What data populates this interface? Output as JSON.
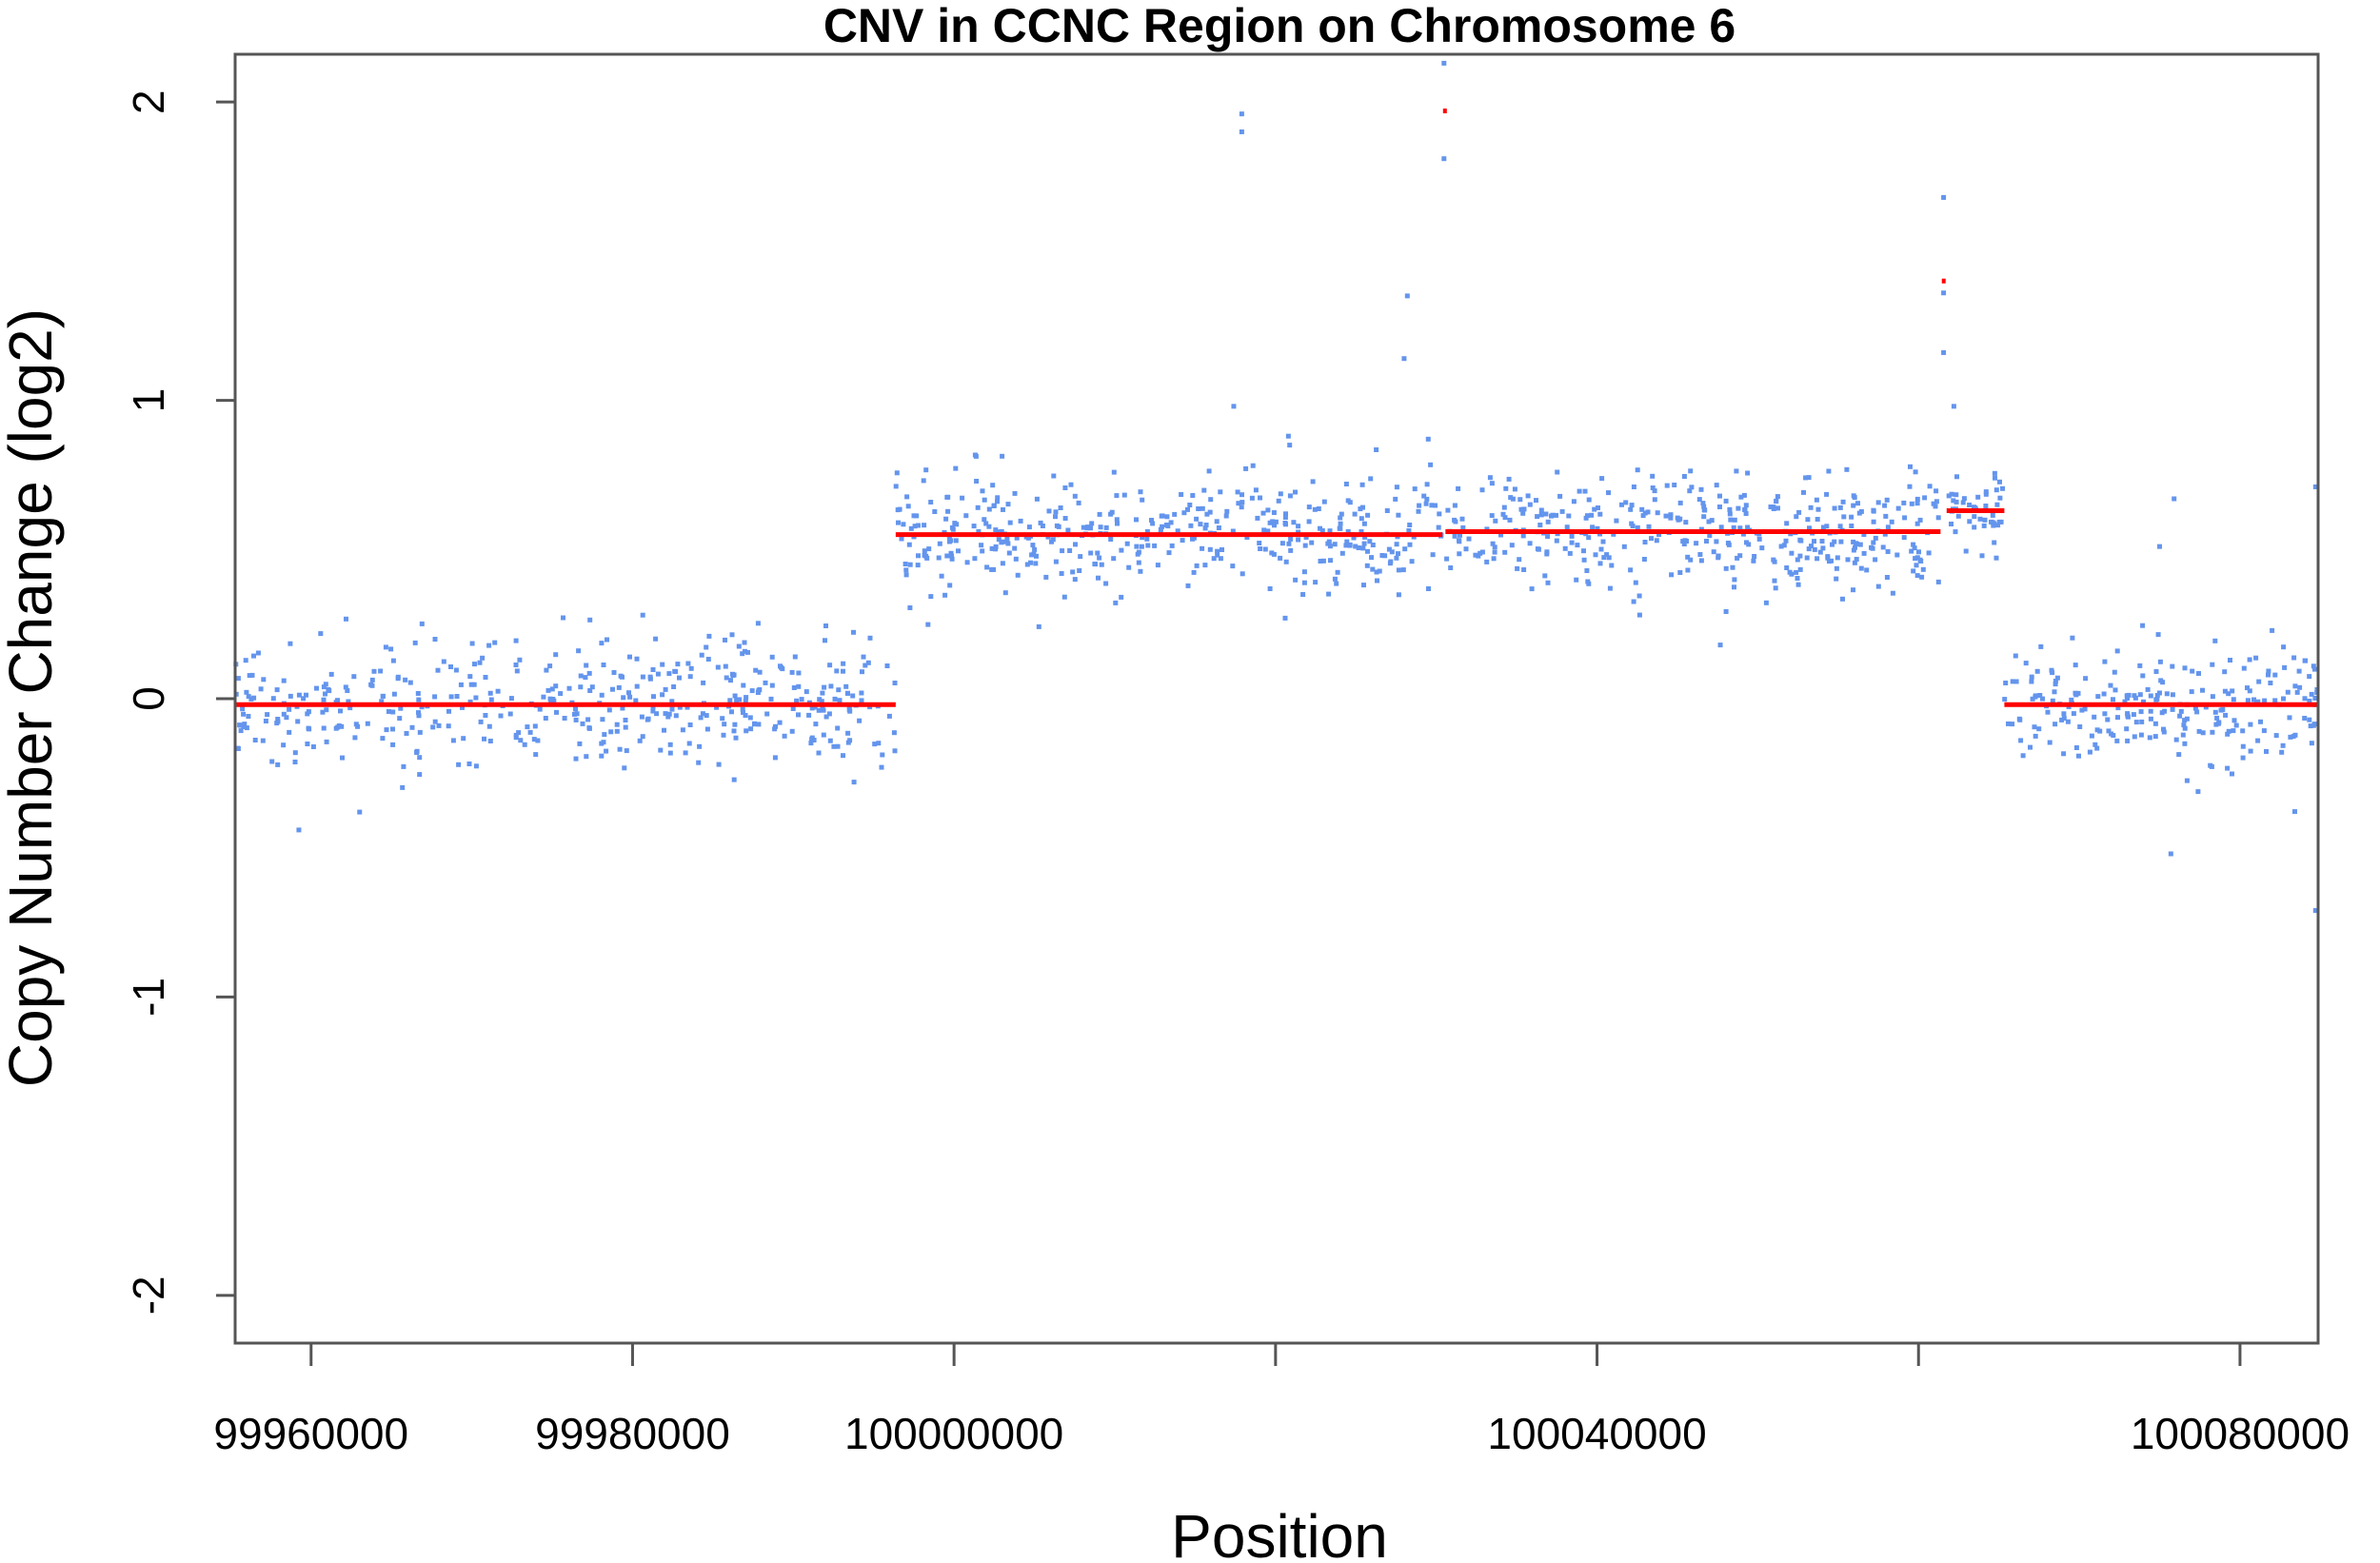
{
  "chart_data": {
    "type": "scatter",
    "title": "CNV in CCNC Region on Chromosome 6",
    "xlabel": "Position",
    "ylabel": "Copy Number Change (log2)",
    "xlim": [
      99955276,
      100084860
    ],
    "ylim": [
      -2.16,
      2.16
    ],
    "x_ticks": [
      99960000,
      99980000,
      100000000,
      100020000,
      100040000,
      100060000,
      100080000
    ],
    "x_tick_labels": [
      "99960000",
      "99980000",
      "100000000",
      "",
      "100040000",
      "",
      "100080000"
    ],
    "y_ticks": [
      -2,
      -1,
      0,
      1,
      2
    ],
    "y_tick_labels": [
      "-2",
      "-1",
      "0",
      "1",
      "2"
    ],
    "grid": false,
    "legend": "none",
    "point_color": "#6495ED",
    "segment_color": "#FF0000",
    "point_series_note_generated": "points approximated per segment: mean, sd, count",
    "point_groups": [
      {
        "start": 99955276,
        "end": 99996370,
        "mean": -0.02,
        "sd": 0.11,
        "count": 460
      },
      {
        "start": 99996370,
        "end": 100030380,
        "mean": 0.55,
        "sd": 0.1,
        "count": 420
      },
      {
        "start": 100030570,
        "end": 100061370,
        "mean": 0.56,
        "sd": 0.1,
        "count": 400
      },
      {
        "start": 100061750,
        "end": 100065340,
        "mean": 0.62,
        "sd": 0.07,
        "count": 50
      },
      {
        "start": 100065340,
        "end": 100084860,
        "mean": -0.02,
        "sd": 0.1,
        "count": 240
      }
    ],
    "outliers": [
      [
        100017900,
        1.96
      ],
      [
        100017900,
        1.9
      ],
      [
        100030480,
        2.13
      ],
      [
        100030480,
        1.81
      ],
      [
        100028200,
        1.35
      ],
      [
        100028000,
        1.14
      ],
      [
        100061560,
        1.68
      ],
      [
        100061560,
        1.36
      ],
      [
        100061560,
        1.16
      ],
      [
        100062200,
        0.98
      ],
      [
        100017400,
        0.98
      ],
      [
        100020800,
        0.88
      ],
      [
        100029500,
        0.87
      ],
      [
        99959240,
        -0.44
      ],
      [
        99963020,
        -0.38
      ],
      [
        100075700,
        -0.52
      ],
      [
        100084700,
        -0.71
      ],
      [
        100084700,
        0.71
      ],
      [
        100075900,
        0.67
      ],
      [
        100075000,
        0.51
      ],
      [
        100047670,
        0.18
      ],
      [
        100020600,
        0.27
      ]
    ],
    "segments": [
      {
        "start": 99955276,
        "end": 99996370,
        "value": -0.02
      },
      {
        "start": 99996370,
        "end": 100030380,
        "value": 0.55
      },
      {
        "start": 100030420,
        "end": 100030520,
        "value": 1.97
      },
      {
        "start": 100030570,
        "end": 100061370,
        "value": 0.56
      },
      {
        "start": 100061450,
        "end": 100061650,
        "value": 1.4
      },
      {
        "start": 100061750,
        "end": 100065340,
        "value": 0.63
      },
      {
        "start": 100065340,
        "end": 100084860,
        "value": -0.02
      }
    ]
  }
}
